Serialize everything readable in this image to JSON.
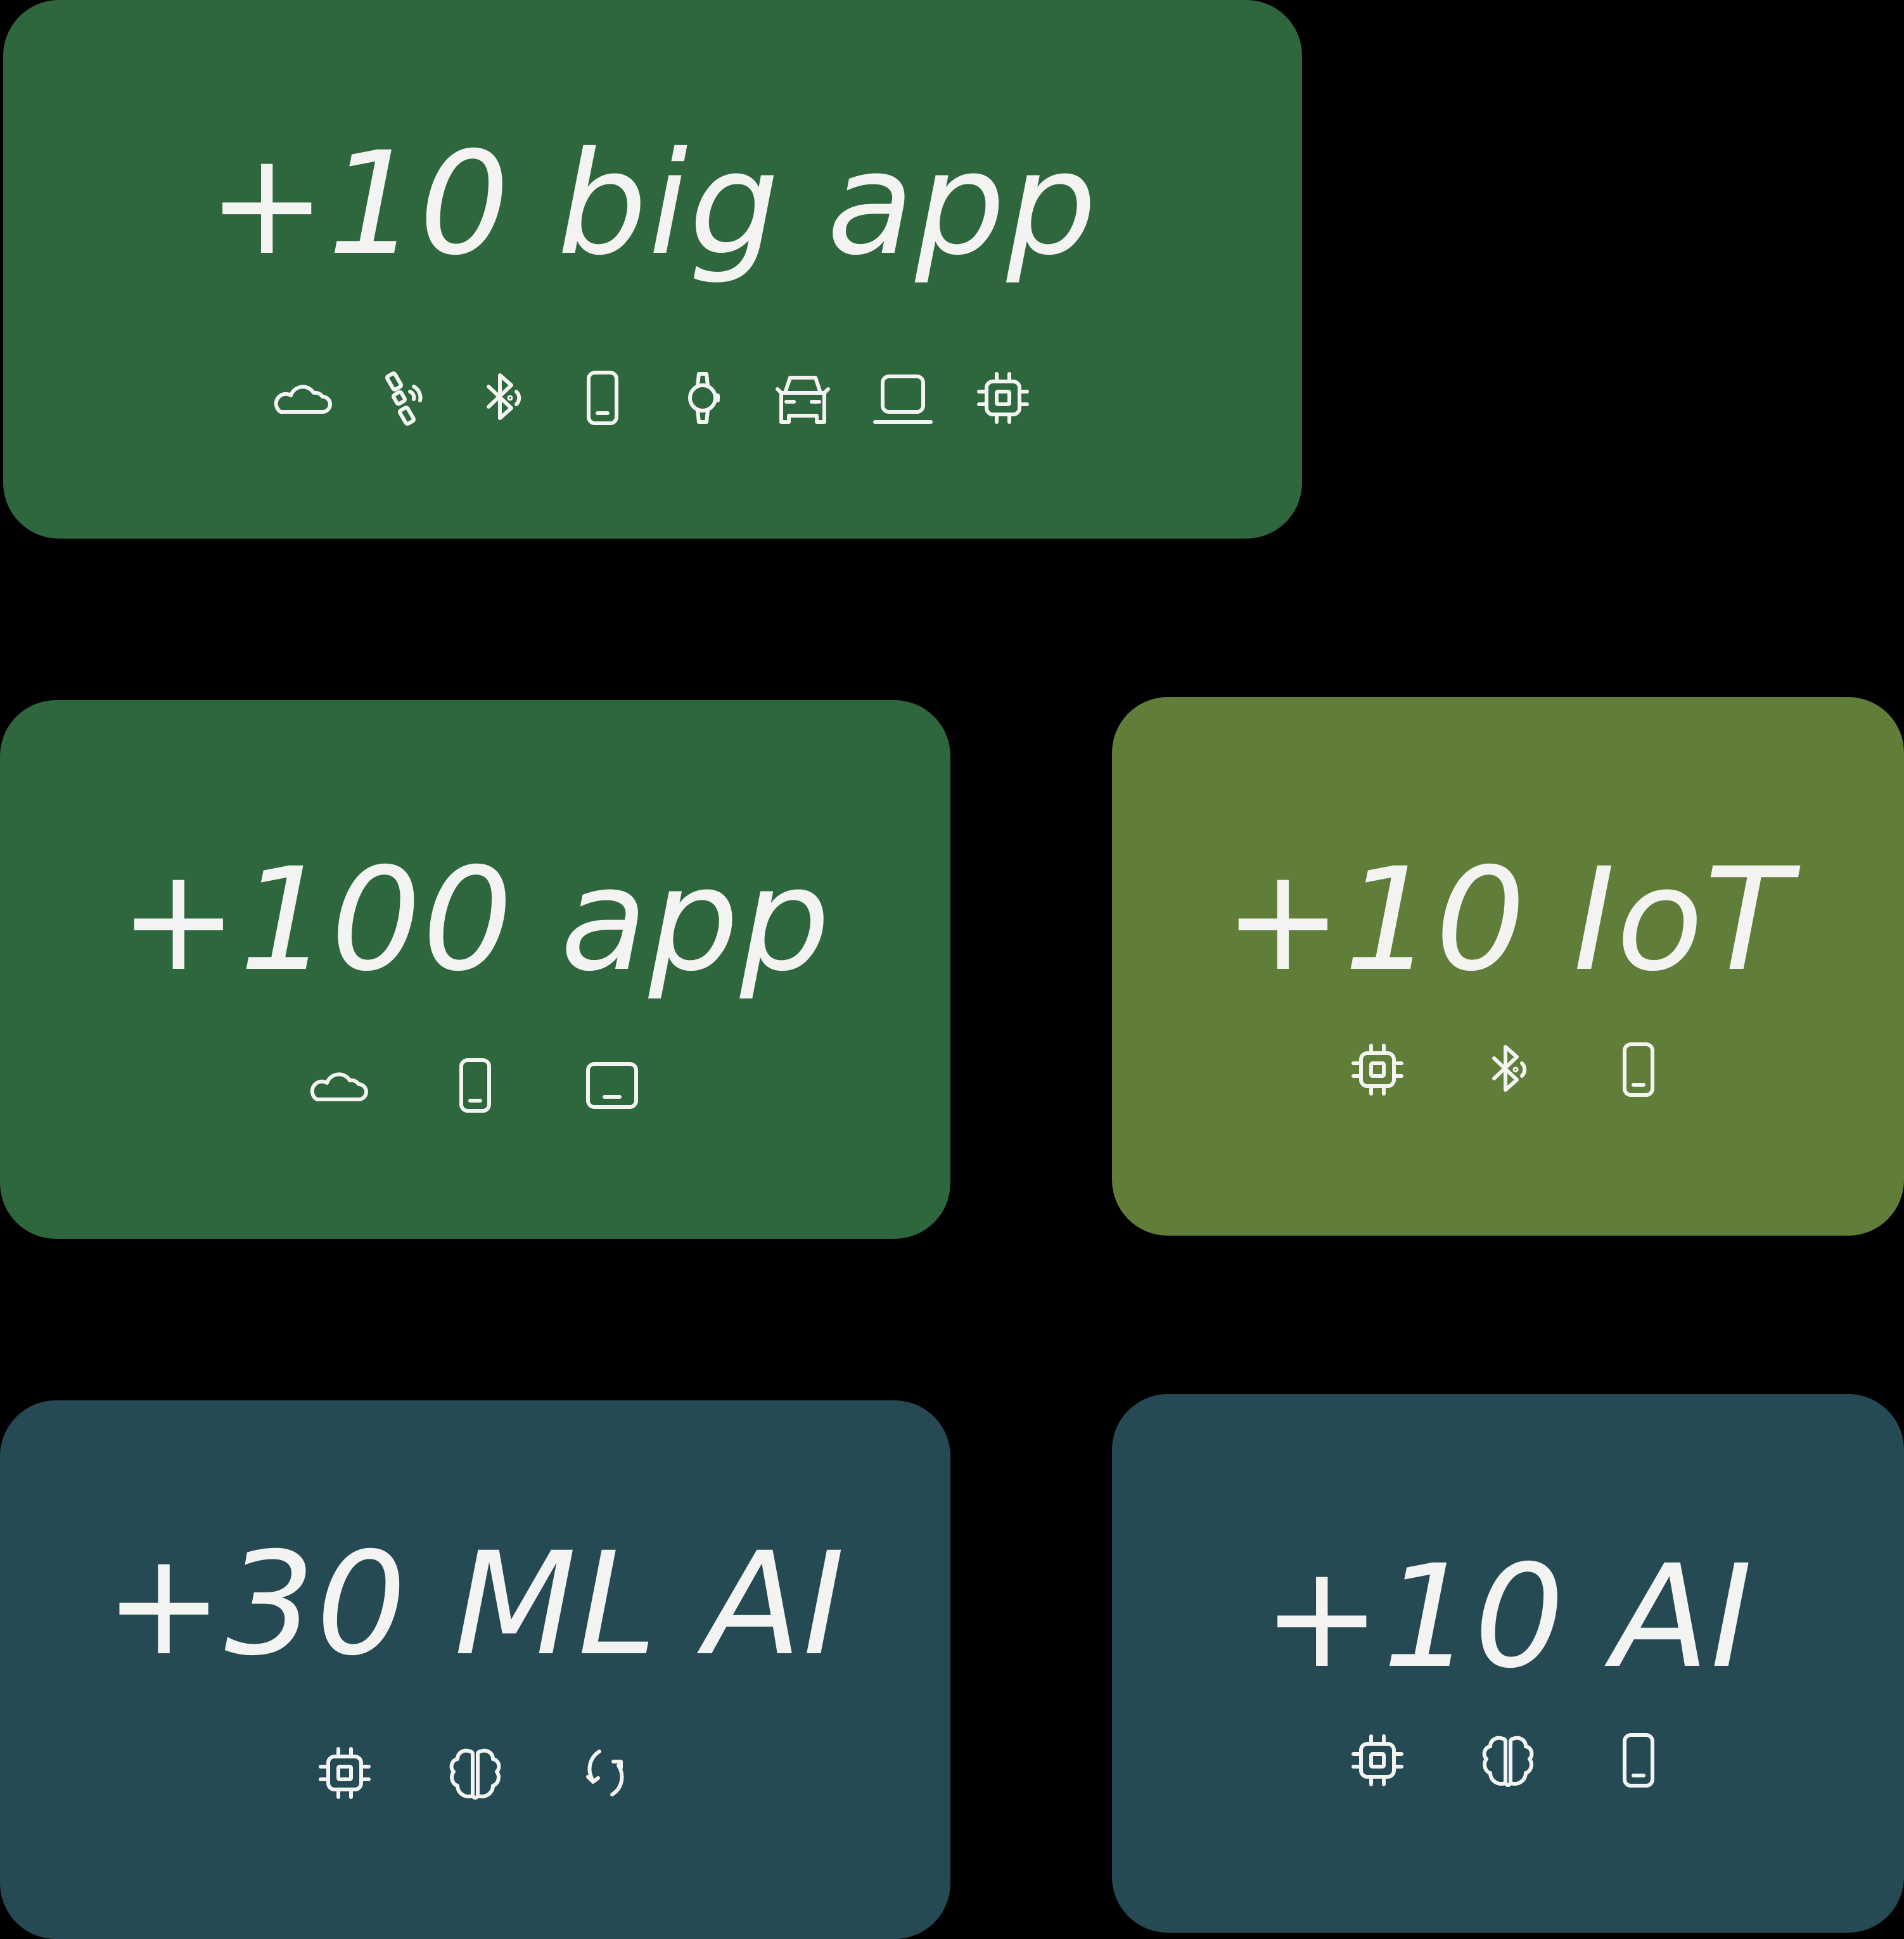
{
  "colors": {
    "background": "#000000",
    "green_dark": "#2E663E",
    "green_olive": "#617D3A",
    "teal_dark": "#264A54",
    "text": "#F3F4F1"
  },
  "cards": [
    {
      "id": "big-app",
      "title": "+10 big app",
      "color": "#2E663E",
      "icons": [
        "cloud-icon",
        "satellite-icon",
        "bluetooth-icon",
        "phone-icon",
        "watch-icon",
        "car-icon",
        "laptop-icon",
        "chip-icon"
      ]
    },
    {
      "id": "app",
      "title": "+100 app",
      "color": "#2E663E",
      "icons": [
        "cloud-icon",
        "phone-icon",
        "tablet-icon"
      ]
    },
    {
      "id": "iot",
      "title": "+10 IoT",
      "color": "#617D3A",
      "icons": [
        "chip-icon",
        "bluetooth-icon",
        "phone-icon"
      ]
    },
    {
      "id": "ml-ai",
      "title": "+30 ML AI",
      "color": "#264A54",
      "icons": [
        "chip-icon",
        "brain-icon",
        "sync-icon"
      ]
    },
    {
      "id": "ai",
      "title": "+10 AI",
      "color": "#264A54",
      "icons": [
        "chip-icon",
        "brain-icon",
        "phone-icon"
      ]
    }
  ]
}
